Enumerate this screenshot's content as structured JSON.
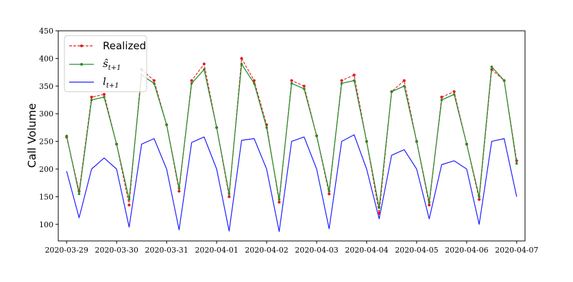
{
  "chart_data": {
    "type": "line",
    "title": "",
    "xlabel": "",
    "ylabel": "Call Volume",
    "xlim": [
      "2020-03-28T20:00",
      "2020-04-07T04:00"
    ],
    "ylim": [
      70,
      450
    ],
    "yticks": [
      100,
      150,
      200,
      250,
      300,
      350,
      400,
      450
    ],
    "xticks": [
      "2020-03-29",
      "2020-03-30",
      "2020-03-31",
      "2020-04-01",
      "2020-04-02",
      "2020-04-03",
      "2020-04-04",
      "2020-04-05",
      "2020-04-06",
      "2020-04-07"
    ],
    "grid": false,
    "legend_position": "top-left",
    "x": [
      "2020-03-29T00:00",
      "2020-03-29T06:00",
      "2020-03-29T12:00",
      "2020-03-29T18:00",
      "2020-03-30T00:00",
      "2020-03-30T06:00",
      "2020-03-30T12:00",
      "2020-03-30T18:00",
      "2020-03-31T00:00",
      "2020-03-31T06:00",
      "2020-03-31T12:00",
      "2020-03-31T18:00",
      "2020-04-01T00:00",
      "2020-04-01T06:00",
      "2020-04-01T12:00",
      "2020-04-01T18:00",
      "2020-04-02T00:00",
      "2020-04-02T06:00",
      "2020-04-02T12:00",
      "2020-04-02T18:00",
      "2020-04-03T00:00",
      "2020-04-03T06:00",
      "2020-04-03T12:00",
      "2020-04-03T18:00",
      "2020-04-04T00:00",
      "2020-04-04T06:00",
      "2020-04-04T12:00",
      "2020-04-04T18:00",
      "2020-04-05T00:00",
      "2020-04-05T06:00",
      "2020-04-05T12:00",
      "2020-04-05T18:00",
      "2020-04-06T00:00",
      "2020-04-06T06:00",
      "2020-04-06T12:00",
      "2020-04-06T18:00",
      "2020-04-07T00:00"
    ],
    "series": [
      {
        "name": "Realized",
        "color": "#e41a1c",
        "values": [
          258,
          160,
          330,
          335,
          245,
          135,
          380,
          360,
          280,
          160,
          360,
          390,
          275,
          150,
          400,
          360,
          280,
          140,
          360,
          350,
          260,
          155,
          360,
          370,
          250,
          120,
          340,
          360,
          250,
          135,
          330,
          340,
          245,
          145,
          380,
          360,
          215
        ]
      },
      {
        "name": "ŝ t+1",
        "color": "#2a8a2a",
        "values": [
          260,
          155,
          325,
          330,
          245,
          145,
          370,
          355,
          280,
          165,
          355,
          380,
          275,
          155,
          390,
          355,
          275,
          145,
          355,
          345,
          260,
          160,
          355,
          360,
          250,
          130,
          340,
          350,
          250,
          140,
          325,
          335,
          245,
          150,
          385,
          360,
          210
        ]
      },
      {
        "name": "l t+1",
        "color": "#1a1aff",
        "values": [
          196,
          112,
          200,
          220,
          200,
          95,
          245,
          255,
          200,
          90,
          248,
          258,
          200,
          88,
          252,
          255,
          200,
          87,
          250,
          258,
          200,
          92,
          250,
          262,
          200,
          110,
          225,
          235,
          200,
          110,
          208,
          215,
          200,
          100,
          250,
          255,
          150
        ]
      }
    ],
    "legend": {
      "realized": "Realized",
      "s_base": "ŝ",
      "s_sub": "t+1",
      "l_base": "l",
      "l_sub": "t+1"
    }
  }
}
